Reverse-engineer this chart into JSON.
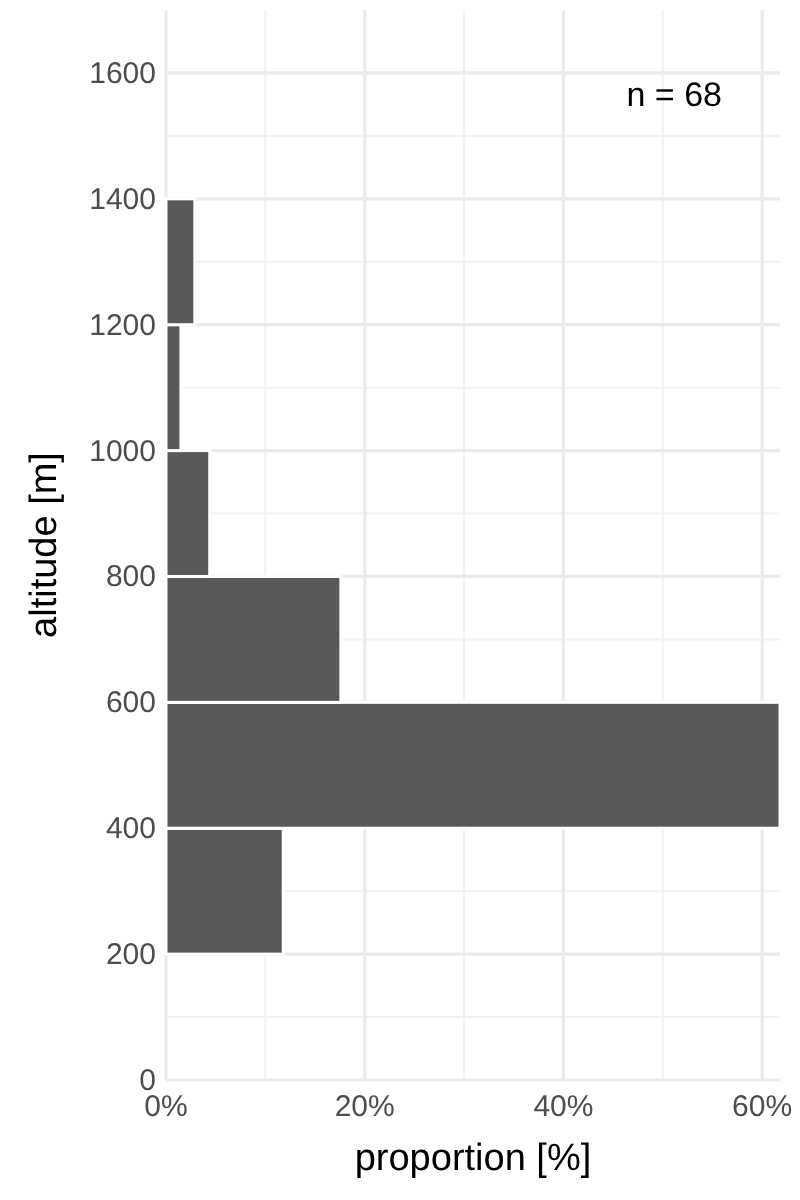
{
  "chart_data": {
    "type": "histogram",
    "orientation": "horizontal",
    "xlabel": "proportion [%]",
    "ylabel": "altitude [m]",
    "bins": [
      200,
      400,
      600,
      800,
      1000,
      1200,
      1400
    ],
    "values": [
      11.8,
      61.8,
      17.6,
      4.4,
      1.5,
      2.9
    ],
    "color": "#595959",
    "xlim": [
      0,
      61.8
    ],
    "ylim": [
      0,
      1700
    ],
    "xticks": [
      {
        "value": 0,
        "label": "0%"
      },
      {
        "value": 20,
        "label": "20%"
      },
      {
        "value": 40,
        "label": "40%"
      },
      {
        "value": 60,
        "label": "60%"
      }
    ],
    "yticks": [
      0,
      200,
      400,
      600,
      800,
      1000,
      1200,
      1400,
      1600
    ],
    "grid": true,
    "annotations": [
      "n = 68"
    ]
  }
}
